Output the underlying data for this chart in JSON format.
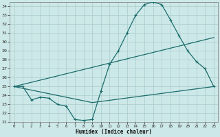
{
  "xlabel": "Humidex (Indice chaleur)",
  "xlim": [
    -0.5,
    23.5
  ],
  "ylim": [
    21,
    34.5
  ],
  "yticks": [
    21,
    22,
    23,
    24,
    25,
    26,
    27,
    28,
    29,
    30,
    31,
    32,
    33,
    34
  ],
  "xticks": [
    0,
    1,
    2,
    3,
    4,
    5,
    6,
    7,
    8,
    9,
    10,
    11,
    12,
    13,
    14,
    15,
    16,
    17,
    18,
    19,
    20,
    21,
    22,
    23
  ],
  "bg_color": "#cde8e8",
  "grid_color": "#a8cccc",
  "line_color": "#1a6b6b",
  "curve1_x": [
    0,
    1,
    2,
    3,
    4,
    5,
    6,
    7,
    8,
    9,
    10,
    11,
    12,
    13,
    14,
    15,
    16,
    17,
    18,
    19,
    20,
    21,
    22,
    23
  ],
  "curve1_y": [
    25.0,
    25.0,
    23.5,
    23.8,
    23.7,
    23.0,
    22.8,
    21.3,
    21.2,
    21.3,
    24.5,
    27.5,
    29.0,
    31.0,
    33.0,
    34.2,
    34.5,
    34.2,
    32.5,
    30.7,
    29.0,
    27.8,
    27.0,
    25.0
  ],
  "curve1_markers_x": [
    0,
    1,
    2,
    3,
    4,
    5,
    6,
    7,
    8,
    9,
    10,
    11,
    12,
    13,
    14,
    15,
    16,
    17,
    18,
    19,
    20,
    21,
    22,
    23
  ],
  "curve2_x": [
    0,
    23
  ],
  "curve2_y": [
    25.0,
    30.5
  ],
  "curve3_x": [
    0,
    9,
    23
  ],
  "curve3_y": [
    25.0,
    23.2,
    25.0
  ]
}
